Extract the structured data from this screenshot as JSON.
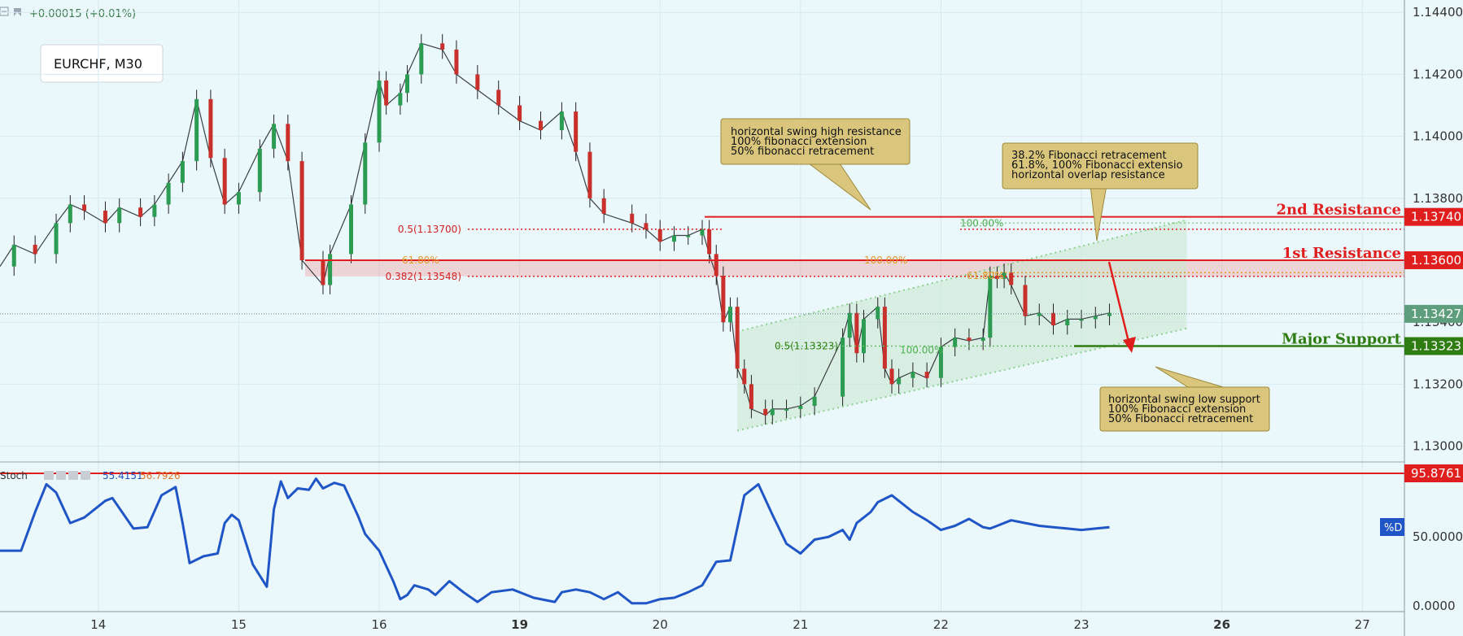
{
  "header": {
    "change": "+0.00015 (+0.01%)"
  },
  "symbol_label": "EURCHF, M30",
  "chart_data": [
    {
      "type": "line",
      "title": "EURCHF, M30",
      "note": "30-minute candlestick price chart, close path approximated",
      "x_ticks": [
        "14",
        "15",
        "16",
        "19",
        "20",
        "21",
        "22",
        "23",
        "26",
        "27"
      ],
      "x_ticks_bold": [
        "19",
        "26"
      ],
      "x_tick_pos": [
        0.7,
        1.7,
        2.7,
        3.7,
        4.7,
        5.7,
        6.7,
        7.7,
        8.7,
        9.7
      ],
      "y_ticks": [
        "1.14400",
        "1.14200",
        "1.14000",
        "1.13800",
        "1.13400",
        "1.13200",
        "1.13000"
      ],
      "y_tick_values": [
        1.144,
        1.142,
        1.14,
        1.138,
        1.134,
        1.132,
        1.13
      ],
      "ylim": [
        1.1297,
        1.1444
      ],
      "xlim": [
        0,
        10
      ],
      "series": [
        {
          "x": [
            0,
            0.1,
            0.25,
            0.4,
            0.5,
            0.6,
            0.75,
            0.85,
            1,
            1.1,
            1.2,
            1.3,
            1.4,
            1.5,
            1.6,
            1.7,
            1.85,
            1.95,
            2.05,
            2.15,
            2.3,
            2.35,
            2.5,
            2.6,
            2.7,
            2.75,
            2.85,
            2.9,
            3,
            3.15,
            3.25,
            3.4,
            3.55,
            3.7,
            3.85,
            4.0,
            4.1,
            4.2,
            4.3,
            4.5,
            4.6,
            4.7,
            4.8,
            4.9,
            5.0,
            5.05,
            5.1,
            5.15,
            5.2,
            5.25,
            5.3,
            5.35,
            5.45,
            5.5,
            5.6,
            5.7,
            5.8,
            6.0,
            6.05,
            6.1,
            6.15,
            6.25,
            6.3,
            6.35,
            6.4,
            6.5,
            6.6,
            6.7,
            6.8,
            6.9,
            7.0,
            7.05,
            7.1,
            7.15,
            7.2,
            7.3,
            7.4,
            7.5,
            7.6,
            7.7,
            7.8,
            7.9
          ],
          "values": [
            1.1358,
            1.1365,
            1.1362,
            1.1372,
            1.1378,
            1.1376,
            1.1372,
            1.1377,
            1.1374,
            1.1378,
            1.1385,
            1.1392,
            1.1412,
            1.1393,
            1.1378,
            1.1382,
            1.1396,
            1.1404,
            1.1392,
            1.136,
            1.1352,
            1.1362,
            1.1378,
            1.1398,
            1.1418,
            1.141,
            1.1414,
            1.142,
            1.143,
            1.1428,
            1.142,
            1.1415,
            1.141,
            1.1405,
            1.1402,
            1.1408,
            1.1395,
            1.138,
            1.1375,
            1.1372,
            1.137,
            1.1366,
            1.1368,
            1.1368,
            1.137,
            1.1362,
            1.1355,
            1.134,
            1.1345,
            1.1325,
            1.132,
            1.1312,
            1.131,
            1.1312,
            1.1312,
            1.1313,
            1.1316,
            1.1335,
            1.1343,
            1.133,
            1.1341,
            1.1345,
            1.1325,
            1.132,
            1.1322,
            1.1324,
            1.1322,
            1.1332,
            1.1335,
            1.1334,
            1.1335,
            1.1355,
            1.1354,
            1.1356,
            1.1352,
            1.1342,
            1.1343,
            1.1339,
            1.1341,
            1.1341,
            1.1342,
            1.1343
          ]
        }
      ]
    },
    {
      "type": "line",
      "title": "Stoch",
      "values_text": [
        "55.4151",
        "56.7926"
      ],
      "y_ticks": [
        "50.0000",
        "0.0000"
      ],
      "y_tick_values": [
        50,
        0
      ],
      "ylim": [
        -4,
        100
      ],
      "series": [
        {
          "name": "%D",
          "x": [
            0,
            0.15,
            0.25,
            0.33,
            0.4,
            0.5,
            0.6,
            0.75,
            0.8,
            0.95,
            1.05,
            1.15,
            1.25,
            1.3,
            1.35,
            1.45,
            1.55,
            1.6,
            1.65,
            1.7,
            1.8,
            1.9,
            1.95,
            2.0,
            2.05,
            2.12,
            2.2,
            2.25,
            2.3,
            2.38,
            2.45,
            2.55,
            2.6,
            2.7,
            2.8,
            2.85,
            2.9,
            2.95,
            3.05,
            3.1,
            3.2,
            3.3,
            3.4,
            3.5,
            3.65,
            3.8,
            3.95,
            4.0,
            4.1,
            4.2,
            4.3,
            4.4,
            4.5,
            4.6,
            4.7,
            4.8,
            4.9,
            5.0,
            5.1,
            5.2,
            5.3,
            5.4,
            5.5,
            5.6,
            5.7,
            5.8,
            5.9,
            6.0,
            6.05,
            6.1,
            6.2,
            6.25,
            6.35,
            6.4,
            6.5,
            6.6,
            6.7,
            6.8,
            6.9,
            7.0,
            7.05,
            7.1,
            7.2,
            7.3,
            7.4,
            7.5,
            7.6,
            7.7,
            7.8,
            7.9
          ],
          "values": [
            40,
            40,
            68,
            88,
            82,
            60,
            64,
            76,
            78,
            56,
            57,
            80,
            86,
            60,
            31,
            36,
            38,
            60,
            66,
            62,
            30,
            14,
            70,
            90,
            78,
            85,
            84,
            92,
            85,
            89,
            87,
            65,
            52,
            40,
            18,
            5,
            8,
            15,
            12,
            8,
            18,
            10,
            3,
            10,
            12,
            6,
            3,
            10,
            12,
            10,
            5,
            10,
            2,
            2,
            5,
            6,
            10,
            15,
            32,
            33,
            80,
            88,
            66,
            45,
            38,
            48,
            50,
            55,
            48,
            60,
            68,
            75,
            80,
            76,
            68,
            62,
            55,
            58,
            63,
            57,
            56,
            58,
            62,
            60,
            58,
            57,
            56,
            55,
            56,
            57
          ]
        }
      ],
      "level": {
        "value": 95.8761,
        "label": "95.8761"
      }
    }
  ],
  "levels": {
    "r2": {
      "name": "2nd Resistance",
      "price_label": "1.13740",
      "value": 1.1374
    },
    "r1": {
      "name": "1st Resistance",
      "price_label": "1.13600",
      "value": 1.136
    },
    "current": {
      "price_label": "1.13427",
      "value": 1.13427
    },
    "support": {
      "name": "Major Support",
      "price_label": "1.13323",
      "value": 1.13323
    }
  },
  "fib_labels": {
    "left_05": "0.5(1.13700)",
    "left_0382": "0.382(1.13548)",
    "left_618": "61.80%",
    "mid_100": "100.00%",
    "mid_05": "0.5(1.13323)",
    "right_100": "100.00%",
    "right_618": "61.80%",
    "low_100": "100.00%"
  },
  "annotations": {
    "top": [
      "horizontal swing high resistance",
      "100% fibonacci extension",
      "50% fibonacci retracement"
    ],
    "right": [
      "38.2% Fibonacci retracement",
      "61.8%, 100% Fibonacci extensio",
      "horizontal overlap resistance"
    ],
    "bottom": [
      "horizontal swing low support",
      "100% Fibonacci extension",
      "50% Fibonacci retracement"
    ]
  },
  "stoch_legend": {
    "name": "Stoch",
    "tag": "%D"
  },
  "colors": {
    "background": "#eaf7fb",
    "resistance": "#e01e1e",
    "support": "#2f7d12",
    "current": "#5e9e7c",
    "note_fill": "#d9c67c",
    "channel": "#8fd18f",
    "stoch_line": "#1f55c7",
    "candle_up": "#2b9c51",
    "candle_down": "#c9302c"
  }
}
